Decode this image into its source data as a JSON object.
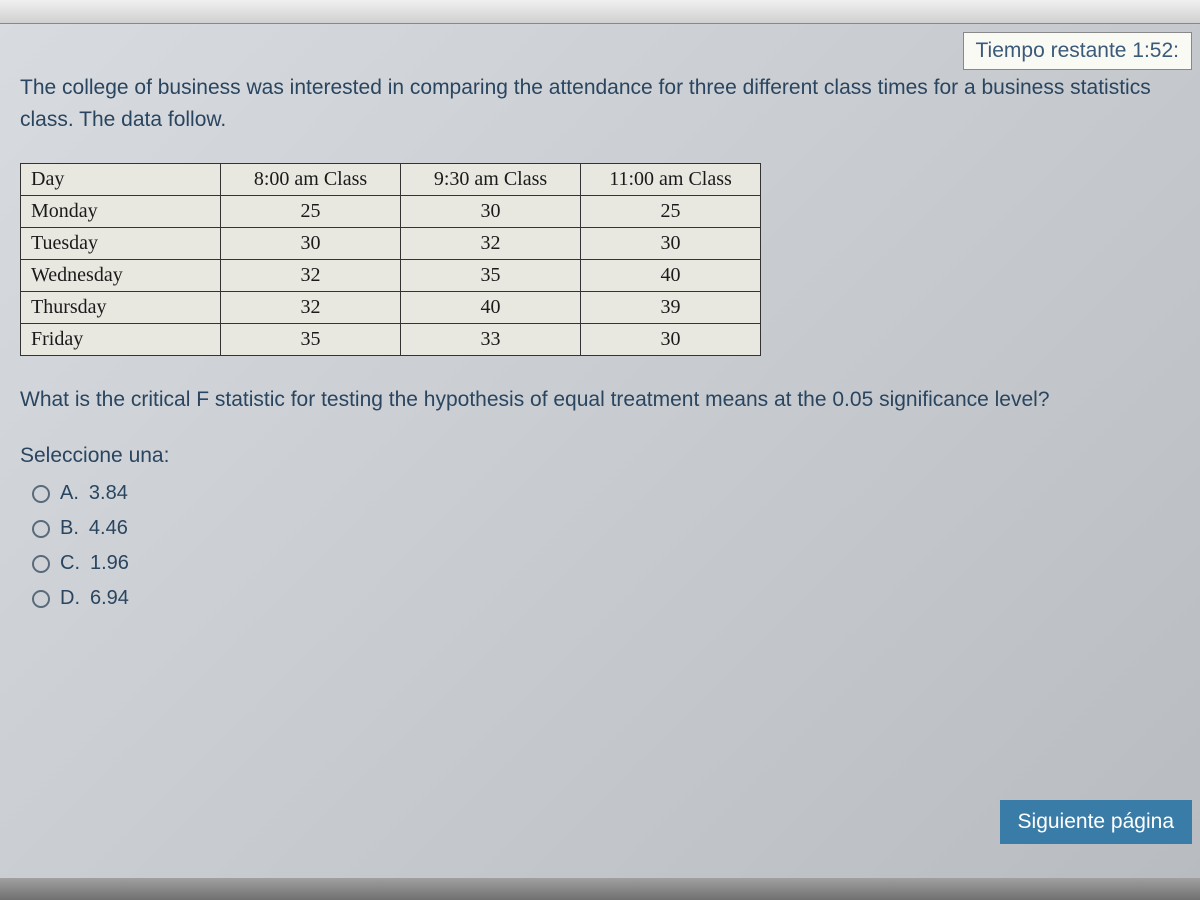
{
  "timer": {
    "label": "Tiempo restante 1:52:"
  },
  "question": {
    "intro": "The college of business was interested in comparing the attendance for three different class times for a business statistics class. The data follow.",
    "followup": "What is the critical F statistic for testing the hypothesis of equal treatment means at the 0.05 significance level?"
  },
  "table": {
    "columns": [
      "Day",
      "8:00 am Class",
      "9:30 am Class",
      "11:00 am Class"
    ],
    "rows": [
      [
        "Monday",
        "25",
        "30",
        "25"
      ],
      [
        "Tuesday",
        "30",
        "32",
        "30"
      ],
      [
        "Wednesday",
        "32",
        "35",
        "40"
      ],
      [
        "Thursday",
        "32",
        "40",
        "39"
      ],
      [
        "Friday",
        "35",
        "33",
        "30"
      ]
    ]
  },
  "select": {
    "label": "Seleccione una:"
  },
  "options": [
    {
      "letter": "A.",
      "value": "3.84"
    },
    {
      "letter": "B.",
      "value": "4.46"
    },
    {
      "letter": "C.",
      "value": "1.96"
    },
    {
      "letter": "D.",
      "value": "6.94"
    }
  ],
  "next_button": {
    "label": "Siguiente página"
  },
  "colors": {
    "text_primary": "#2a4560",
    "table_border": "#333333",
    "table_bg": "#e8e8e0",
    "button_bg": "#3a7ca8",
    "button_text": "#ffffff",
    "timer_bg": "#fafaf5"
  }
}
